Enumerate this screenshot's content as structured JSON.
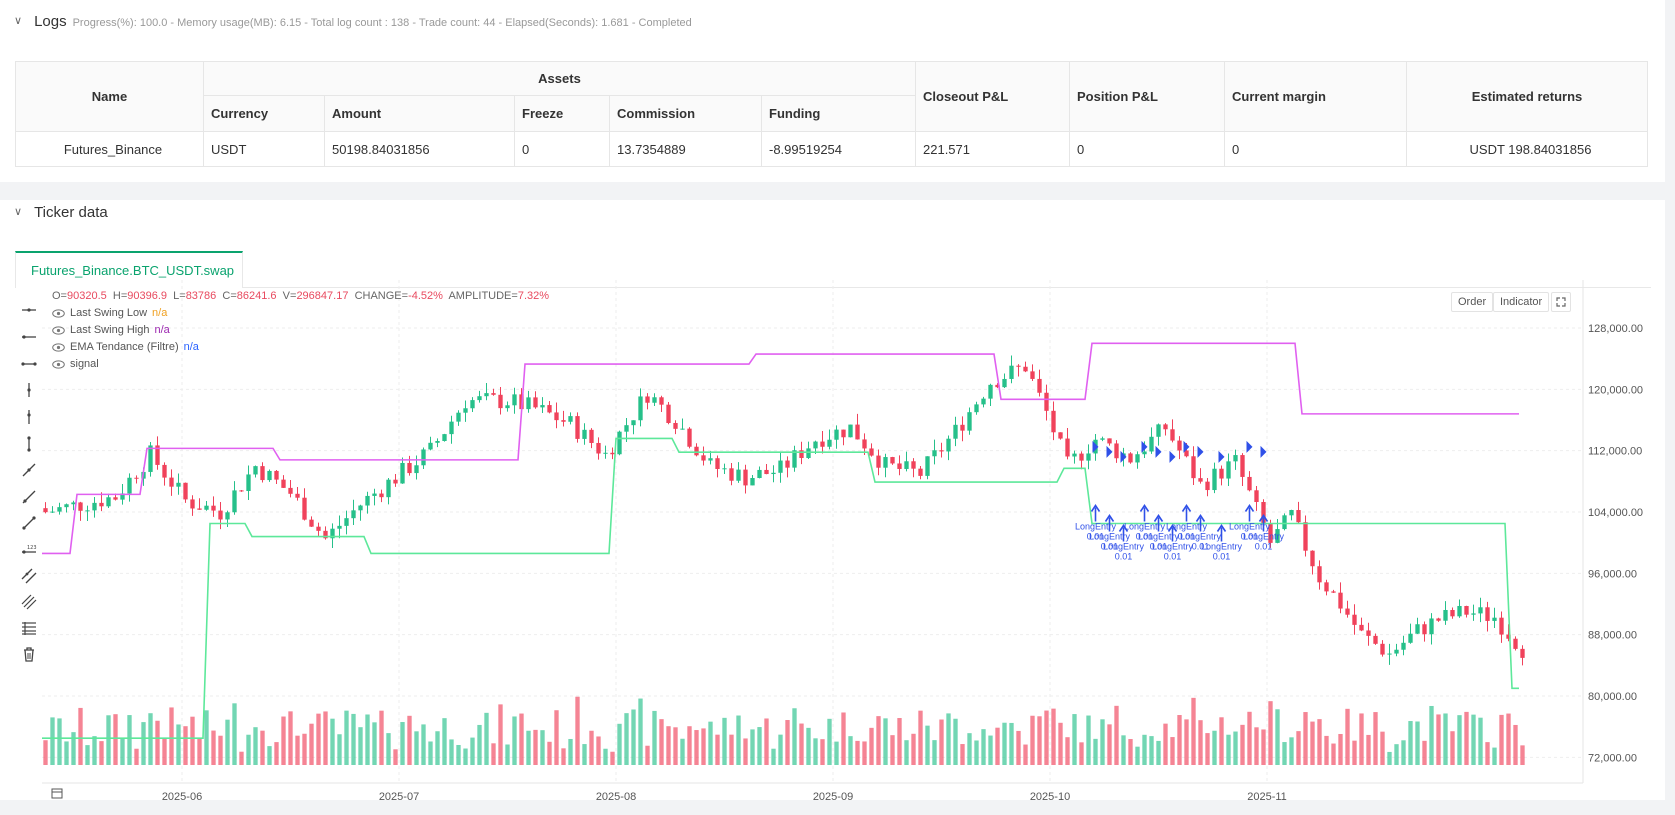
{
  "logs": {
    "title": "Logs",
    "status": "Progress(%): 100.0 - Memory usage(MB): 6.15 - Total log count : 138 - Trade count: 44 - Elapsed(Seconds): 1.681 - Completed"
  },
  "assets_table": {
    "name_header": "Name",
    "assets_header": "Assets",
    "sub_headers": [
      "Currency",
      "Amount",
      "Freeze",
      "Commission",
      "Funding"
    ],
    "closeout_header": "Closeout P&L",
    "position_header": "Position P&L",
    "margin_header": "Current margin",
    "returns_header": "Estimated returns",
    "row": {
      "name": "Futures_Binance",
      "currency": "USDT",
      "amount": "50198.84031856",
      "freeze": "0",
      "commission": "13.7354889",
      "funding": "-8.99519254",
      "closeout": "221.571",
      "position": "0",
      "margin": "0",
      "returns": "USDT 198.84031856"
    }
  },
  "ticker": {
    "title": "Ticker data",
    "tab": "Futures_Binance.BTC_USDT.swap"
  },
  "chart_header": {
    "o_label": "O=",
    "o": "90320.5",
    "h_label": "H=",
    "h": "90396.9",
    "l_label": "L=",
    "l": "83786",
    "c_label": "C=",
    "c": "86241.6",
    "v_label": "V=",
    "v": "296847.17",
    "change_label": "CHANGE=",
    "change": "-4.52%",
    "amp_label": "AMPLITUDE=",
    "amp": "7.32%"
  },
  "legend": [
    {
      "label": "Last Swing Low",
      "value": "n/a",
      "color": "#f0a020"
    },
    {
      "label": "Last Swing High",
      "value": "n/a",
      "color": "#9c27b0"
    },
    {
      "label": "EMA Tendance (Filtre)",
      "value": "n/a",
      "color": "#2962ff"
    },
    {
      "label": "signal",
      "value": "",
      "color": "#555555"
    }
  ],
  "buttons": {
    "order": "Order",
    "indicator": "Indicator"
  },
  "colors": {
    "up": "#26c08a",
    "down": "#f0425b",
    "swing_low": "#5de89a",
    "swing_high": "#e060f0",
    "signal": "#2f50e8",
    "accent": "#0aa36e"
  },
  "chart_data": {
    "type": "candlestick",
    "title": "Futures_Binance.BTC_USDT.swap",
    "y_ticks": [
      "128,000.00",
      "120,000.00",
      "112,000.00",
      "104,000.00",
      "96,000.00",
      "88,000.00",
      "80,000.00",
      "72,000.00"
    ],
    "y_tick_values": [
      128000,
      120000,
      112000,
      104000,
      96000,
      88000,
      80000,
      72000
    ],
    "x_ticks": [
      "2025-06",
      "2025-07",
      "2025-08",
      "2025-09",
      "2025-10",
      "2025-11"
    ],
    "x_tick_days": [
      20,
      51,
      82,
      113,
      144,
      175
    ],
    "ylim": [
      71000,
      131000
    ],
    "xlim_days": [
      0,
      220
    ],
    "candles": {
      "count": 212,
      "start_close": 104500,
      "closes_anchor_days": [
        0,
        10,
        15,
        20,
        25,
        30,
        35,
        40,
        45,
        50,
        55,
        60,
        66,
        70,
        75,
        80,
        86,
        90,
        95,
        100,
        105,
        110,
        115,
        120,
        125,
        130,
        135,
        140,
        143,
        146,
        150,
        155,
        160,
        165,
        170,
        175,
        178,
        182,
        185,
        188,
        192,
        196,
        199,
        203,
        207,
        211
      ],
      "closes_anchor_values": [
        104000,
        106000,
        111500,
        105500,
        104000,
        110000,
        106500,
        100500,
        105000,
        108500,
        112000,
        118500,
        118500,
        117500,
        115500,
        111500,
        119500,
        116000,
        110000,
        108500,
        109500,
        113500,
        115000,
        110000,
        109000,
        114500,
        121000,
        123000,
        117000,
        110000,
        113500,
        111000,
        115000,
        107500,
        110500,
        100000,
        103500,
        95500,
        92000,
        88000,
        85500,
        88500,
        90000,
        91000,
        90320,
        86241
      ]
    },
    "series": [
      {
        "name": "Last Swing Low",
        "days": [
          0,
          23,
          24,
          29,
          30,
          46,
          47,
          81,
          82,
          90,
          91,
          118,
          119,
          145,
          146,
          149,
          150,
          209,
          210,
          211
        ],
        "values": [
          74500,
          74500,
          102500,
          102500,
          100800,
          100800,
          98600,
          98600,
          113600,
          113600,
          111800,
          111800,
          107900,
          107900,
          109700,
          109700,
          102500,
          102500,
          81000,
          81000
        ]
      },
      {
        "name": "Last Swing High",
        "days": [
          0,
          4,
          5,
          14,
          15,
          33,
          34,
          68,
          69,
          101,
          102,
          136,
          137,
          149,
          150,
          179,
          180,
          211
        ],
        "values": [
          98600,
          98600,
          106300,
          106300,
          112300,
          112300,
          110800,
          110800,
          123300,
          123300,
          124600,
          124600,
          118700,
          118700,
          126000,
          126000,
          116800,
          116800
        ]
      }
    ],
    "volume_series": {
      "name": "Volume"
    },
    "signals": [
      {
        "type": "arrow-up",
        "label": "LongEntry",
        "qty": "0.01",
        "day": 150
      },
      {
        "type": "arrow-up",
        "label": "LongEntry",
        "qty": "0.01",
        "day": 152
      },
      {
        "type": "arrow-up",
        "label": "LongEntry",
        "qty": "0.01",
        "day": 154
      },
      {
        "type": "arrow-up",
        "label": "LongEntry",
        "qty": "0.01",
        "day": 157
      },
      {
        "type": "arrow-up",
        "label": "LongEntry",
        "qty": "0.01",
        "day": 159
      },
      {
        "type": "arrow-up",
        "label": "LongEntry",
        "qty": "0.01",
        "day": 161
      },
      {
        "type": "arrow-up",
        "label": "LongEntry",
        "qty": "0.01",
        "day": 163
      },
      {
        "type": "arrow-up",
        "label": "LongEntry",
        "qty": "0.01",
        "day": 165
      },
      {
        "type": "arrow-up",
        "label": "LongEntry",
        "qty": "0.01",
        "day": 168
      },
      {
        "type": "arrow-up",
        "label": "LongEntry",
        "qty": "0.01",
        "day": 172
      },
      {
        "type": "arrow-up",
        "label": "LongEntry",
        "qty": "0.01",
        "day": 174
      }
    ]
  }
}
